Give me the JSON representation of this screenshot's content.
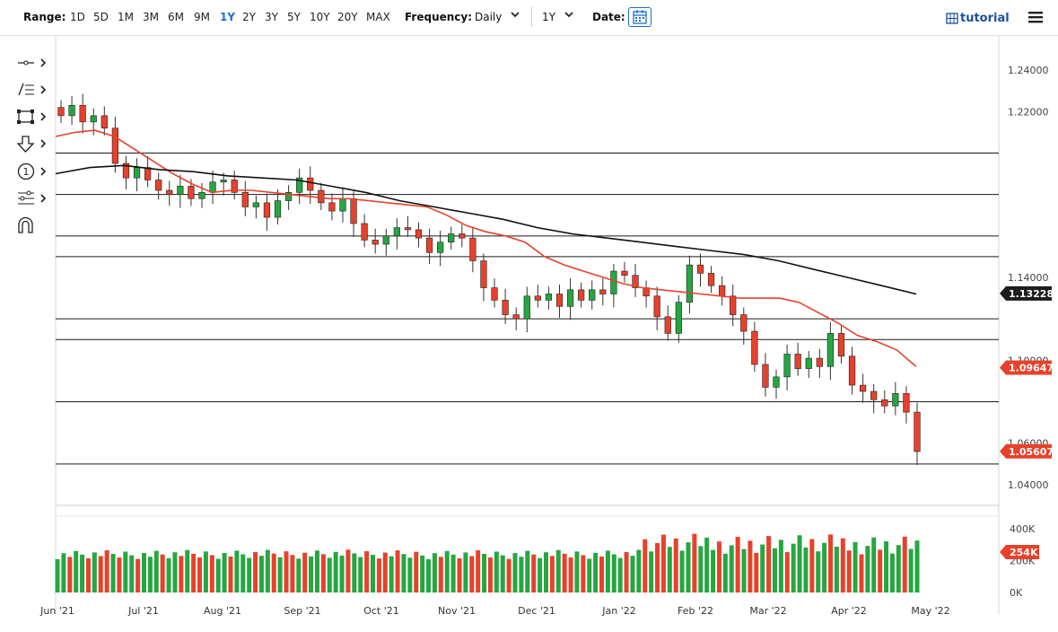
{
  "toolbar": {
    "range_label": "Range:",
    "ranges": [
      "1D",
      "5D",
      "1M",
      "3M",
      "6M",
      "9M",
      "1Y",
      "2Y",
      "3Y",
      "5Y",
      "10Y",
      "20Y",
      "MAX"
    ],
    "active_range": "1Y",
    "frequency_label": "Frequency:",
    "frequency_value": "Daily",
    "period_value": "1Y",
    "date_label": "Date:",
    "tutorial_label": "tutorial"
  },
  "tools": [
    "crosshair-icon",
    "trend-lines-icon",
    "rectangle-icon",
    "arrow-down-icon",
    "count-icon",
    "fibonacci-icon",
    "magnet-icon"
  ],
  "colors": {
    "up": "#26a641",
    "down": "#e8412b",
    "ma_fast": "#e8412b",
    "ma_slow": "#111111",
    "badge_dark": "#1d1d1d",
    "badge_red": "#e8412b"
  },
  "chart_data": {
    "type": "candlestick",
    "x_labels": [
      "Jun '21",
      "Jul '21",
      "Aug '21",
      "Sep '21",
      "Oct '21",
      "Nov '21",
      "Dec '21",
      "Jan '22",
      "Feb '22",
      "Mar '22",
      "Apr '22",
      "May '22"
    ],
    "y_range": [
      1.03,
      1.25
    ],
    "y_ticks": [
      "1.24000",
      "1.22000",
      "1.14000",
      "1.10000",
      "1.06000",
      "1.04000"
    ],
    "horizontal_levels": [
      {
        "value": 1.2,
        "label": "1.20000"
      },
      {
        "value": 1.18,
        "label": "1.18000"
      },
      {
        "value": 1.16,
        "label": "1.16000"
      },
      {
        "value": 1.15,
        "label": "1.15000"
      },
      {
        "value": 1.12,
        "label": "1.12000"
      },
      {
        "value": 1.11,
        "label": "1.11000"
      },
      {
        "value": 1.08,
        "label": "1.08000"
      },
      {
        "value": 1.05,
        "label": "1.05000"
      }
    ],
    "price_badges": [
      {
        "value": 1.13228,
        "label": "1.13228",
        "color": "dark"
      },
      {
        "value": 1.09647,
        "label": "1.09647",
        "color": "red"
      },
      {
        "value": 1.05607,
        "label": "1.05607",
        "color": "red"
      }
    ],
    "closes": [
      1.218,
      1.223,
      1.215,
      1.218,
      1.212,
      1.195,
      1.188,
      1.193,
      1.187,
      1.182,
      1.18,
      1.184,
      1.178,
      1.181,
      1.186,
      1.187,
      1.181,
      1.174,
      1.176,
      1.169,
      1.177,
      1.181,
      1.188,
      1.182,
      1.176,
      1.172,
      1.178,
      1.166,
      1.158,
      1.156,
      1.16,
      1.164,
      1.163,
      1.159,
      1.152,
      1.157,
      1.161,
      1.159,
      1.148,
      1.135,
      1.129,
      1.122,
      1.12,
      1.131,
      1.129,
      1.132,
      1.126,
      1.134,
      1.129,
      1.134,
      1.132,
      1.143,
      1.141,
      1.135,
      1.131,
      1.121,
      1.113,
      1.128,
      1.146,
      1.142,
      1.136,
      1.131,
      1.122,
      1.114,
      1.098,
      1.087,
      1.092,
      1.103,
      1.096,
      1.101,
      1.097,
      1.113,
      1.102,
      1.088,
      1.085,
      1.081,
      1.078,
      1.084,
      1.075,
      1.056
    ],
    "ma50": [
      1.208,
      1.21,
      1.211,
      1.208,
      1.202,
      1.196,
      1.19,
      1.185,
      1.181,
      1.182,
      1.182,
      1.181,
      1.18,
      1.179,
      1.178,
      1.178,
      1.177,
      1.176,
      1.175,
      1.174,
      1.17,
      1.165,
      1.162,
      1.16,
      1.157,
      1.15,
      1.146,
      1.143,
      1.14,
      1.137,
      1.135,
      1.134,
      1.133,
      1.132,
      1.131,
      1.13,
      1.13,
      1.13,
      1.128,
      1.123,
      1.118,
      1.112,
      1.109,
      1.105,
      1.097
    ],
    "ma200": [
      1.19,
      1.193,
      1.194,
      1.192,
      1.191,
      1.189,
      1.188,
      1.187,
      1.184,
      1.181,
      1.177,
      1.174,
      1.171,
      1.168,
      1.164,
      1.161,
      1.159,
      1.157,
      1.155,
      1.153,
      1.151,
      1.148,
      1.144,
      1.14,
      1.136,
      1.132
    ],
    "volume_ticks": [
      "400K",
      "200K",
      "0K"
    ],
    "volume_badge": "254K",
    "volume_range": [
      0,
      480
    ]
  }
}
